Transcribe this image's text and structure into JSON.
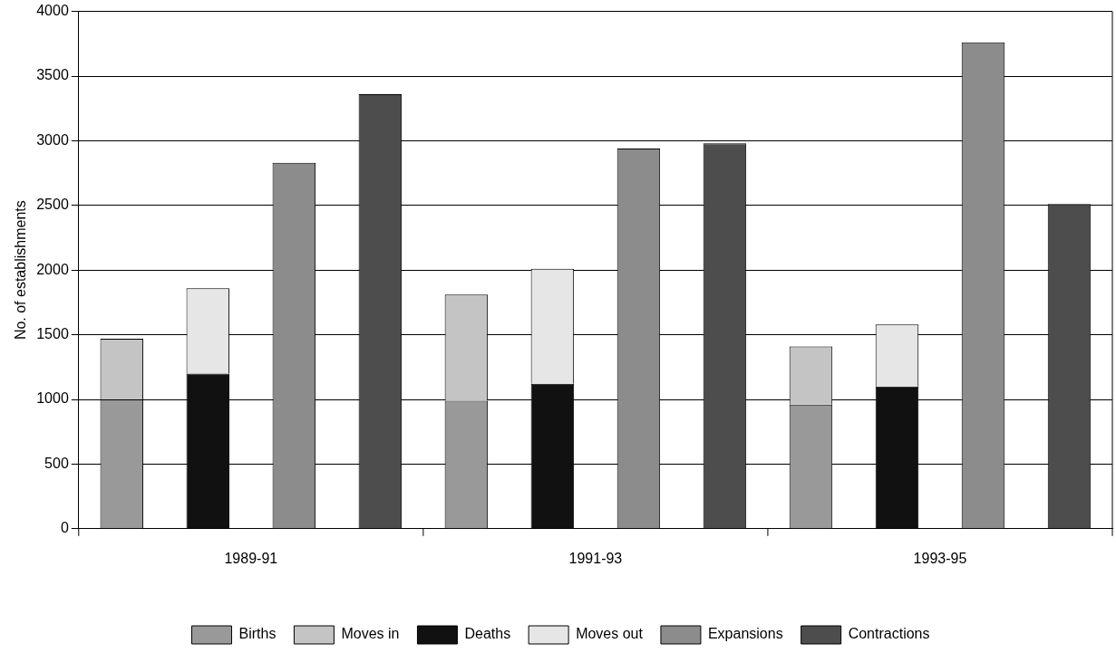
{
  "chart_data": {
    "type": "bar",
    "stacked": true,
    "ylabel": "No. of establishments",
    "categories": [
      null,
      null,
      null,
      null,
      null,
      null,
      null,
      null,
      null,
      null,
      null,
      null
    ],
    "annotations": [
      "1989-91",
      "1991-93",
      "1993-95"
    ],
    "series": [
      {
        "name": "Births",
        "color": "#999999",
        "values": [
          1000,
          null,
          null,
          null,
          990,
          null,
          null,
          null,
          960,
          null,
          null,
          null
        ]
      },
      {
        "name": "Moves in",
        "color": "#c4c4c4",
        "values": [
          470,
          null,
          null,
          null,
          820,
          null,
          null,
          null,
          450,
          null,
          null,
          null
        ]
      },
      {
        "name": "Deaths",
        "color": "#111111",
        "values": [
          null,
          1200,
          null,
          null,
          null,
          1120,
          null,
          null,
          null,
          1100,
          null,
          null
        ]
      },
      {
        "name": "Moves out",
        "color": "#e6e6e6",
        "values": [
          null,
          660,
          null,
          null,
          null,
          890,
          null,
          null,
          null,
          480,
          null,
          null
        ]
      },
      {
        "name": "Expansions",
        "color": "#8c8c8c",
        "values": [
          null,
          null,
          2830,
          null,
          null,
          null,
          2940,
          null,
          null,
          null,
          3760,
          null
        ]
      },
      {
        "name": "Contractions",
        "color": "#4d4d4d",
        "values": [
          null,
          null,
          null,
          3360,
          null,
          null,
          null,
          2980,
          null,
          null,
          null,
          2510
        ]
      }
    ],
    "ylim": [
      0,
      4000
    ],
    "yticks": [
      0,
      500,
      1000,
      1500,
      2000,
      2500,
      3000,
      3500,
      4000
    ],
    "grid": "y",
    "legend": "bottom"
  }
}
